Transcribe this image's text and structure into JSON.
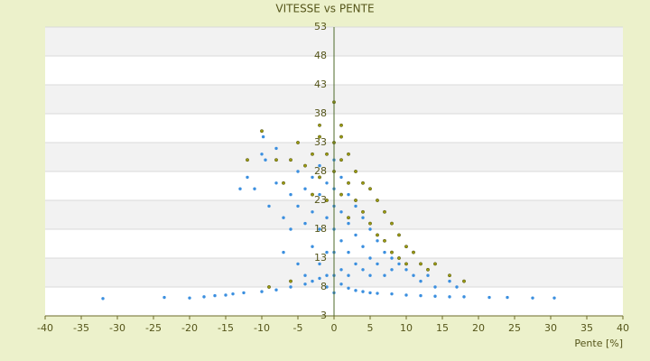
{
  "chart_data": {
    "type": "scatter",
    "title": "VITESSE vs PENTE",
    "x_label": "Pente [%]",
    "xlim": [
      -40,
      40
    ],
    "xticks": [
      -40,
      -35,
      -30,
      -25,
      -20,
      -15,
      -10,
      -5,
      0,
      5,
      10,
      15,
      20,
      25,
      30,
      35,
      40
    ],
    "ylim": [
      3,
      53
    ],
    "yticks": [
      3,
      8,
      13,
      18,
      23,
      28,
      33,
      38,
      43,
      48,
      53
    ],
    "grid": true,
    "series": [
      {
        "color": "#3b8fdf",
        "x": [
          -32,
          -23.5,
          -20,
          -18,
          -16.5,
          -15,
          -14,
          -12.5,
          -10,
          -8,
          -6,
          -4,
          -2,
          -1,
          0,
          1,
          2,
          3,
          4,
          5,
          6,
          8,
          10,
          12,
          14,
          16,
          18,
          21.5,
          24,
          27.5,
          30.5,
          -10,
          -9.5,
          -11,
          -9,
          -8,
          -7,
          -7,
          -6,
          -6,
          -5,
          -5,
          -5,
          -4,
          -4,
          -4,
          -3,
          -3,
          -3,
          -3,
          -2,
          -2,
          -2,
          -2,
          -1,
          -1,
          -1,
          -1,
          0,
          0,
          0,
          0,
          0,
          0,
          1,
          1,
          1,
          1,
          2,
          2,
          2,
          2,
          3,
          3,
          3,
          4,
          4,
          4,
          5,
          5,
          5,
          6,
          6,
          7,
          7,
          8,
          8,
          9,
          10,
          11,
          12,
          13,
          14,
          16,
          17,
          -12,
          -13,
          -8,
          -9.8
        ],
        "y": [
          6,
          6.2,
          6.1,
          6.3,
          6.5,
          6.6,
          6.8,
          7,
          7.2,
          7.5,
          8,
          8.5,
          9.5,
          10,
          7,
          8.5,
          7.8,
          7.4,
          7.2,
          7,
          6.9,
          6.8,
          6.6,
          6.5,
          6.4,
          6.3,
          6.3,
          6.2,
          6.2,
          6.1,
          6.1,
          31,
          30,
          25,
          22,
          26,
          20,
          14,
          24,
          18,
          28,
          22,
          12,
          25,
          19,
          10,
          27,
          21,
          15,
          9,
          29,
          24,
          18,
          12,
          26,
          20,
          14,
          8,
          30,
          25,
          22,
          18,
          14,
          10,
          27,
          21,
          16,
          11,
          24,
          19,
          14,
          10,
          22,
          17,
          12,
          20,
          15,
          11,
          18,
          13,
          10,
          16,
          12,
          14,
          10,
          13,
          11,
          12,
          11,
          10,
          9,
          10,
          8,
          9,
          8,
          27,
          25,
          32,
          34
        ]
      },
      {
        "color": "#9a9a10",
        "x": [
          -12,
          -10,
          -7,
          -6,
          -5,
          -4,
          -3,
          -3,
          -2,
          -2,
          -1,
          -1,
          0,
          0,
          0,
          1,
          1,
          1,
          2,
          2,
          2,
          3,
          3,
          4,
          4,
          5,
          5,
          6,
          6,
          7,
          7,
          8,
          8,
          9,
          9,
          10,
          10,
          11,
          12,
          13,
          14,
          16,
          18,
          -8,
          -6,
          -9,
          -2,
          1
        ],
        "y": [
          30,
          35,
          26,
          30,
          33,
          29,
          31,
          24,
          34,
          27,
          31,
          23,
          40,
          33,
          28,
          34,
          30,
          24,
          31,
          26,
          20,
          28,
          23,
          26,
          21,
          25,
          19,
          23,
          17,
          21,
          16,
          19,
          14,
          17,
          13,
          15,
          12,
          14,
          12,
          11,
          12,
          10,
          9,
          30,
          9,
          8,
          36,
          36
        ]
      }
    ]
  }
}
